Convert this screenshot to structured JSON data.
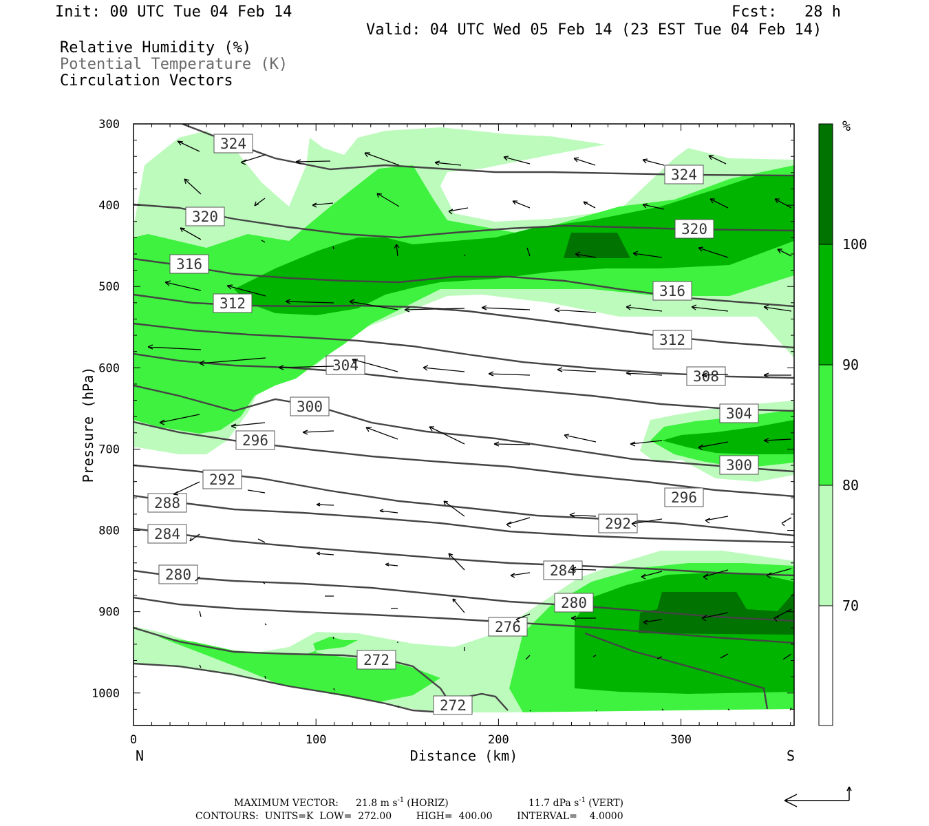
{
  "header": {
    "init": "Init: 00 UTC Tue 04 Feb 14",
    "fcst": "Fcst:   28 h",
    "valid": "Valid: 04 UTC Wed 05 Feb 14 (23 EST Tue 04 Feb 14)",
    "legend_rh": "Relative Humidity (%)",
    "legend_theta": "Potential Temperature (K)",
    "legend_vectors": "Circulation Vectors"
  },
  "colors": {
    "rh70": "#bdfbbd",
    "rh80": "#3ff23f",
    "rh90": "#00b400",
    "rh100": "#007300",
    "contour": "#444444"
  },
  "chart_data": {
    "type": "cross-section",
    "xlabel": "Distance (km)",
    "ylabel": "Pressure (hPa)",
    "x_range": [
      0,
      362
    ],
    "y_range": [
      300,
      1040
    ],
    "x_ticks": [
      0,
      100,
      200,
      300
    ],
    "y_ticks": [
      300,
      400,
      500,
      600,
      700,
      800,
      900,
      1000
    ],
    "x_end_labels": {
      "left": "N",
      "right": "S"
    },
    "colorbar": {
      "unit": "%",
      "levels": [
        70,
        80,
        90,
        100
      ]
    },
    "theta_contour_labels": [
      {
        "value": "324",
        "x": 54,
        "p": 324
      },
      {
        "value": "324",
        "x": 302,
        "p": 363
      },
      {
        "value": "320",
        "x": 39,
        "p": 415
      },
      {
        "value": "320",
        "x": 309,
        "p": 430
      },
      {
        "value": "316",
        "x": 30,
        "p": 474
      },
      {
        "value": "316",
        "x": 297,
        "p": 506
      },
      {
        "value": "312",
        "x": 54,
        "p": 521
      },
      {
        "value": "312",
        "x": 297,
        "p": 566
      },
      {
        "value": "308",
        "x": 314,
        "p": 610
      },
      {
        "value": "304",
        "x": 116,
        "p": 598
      },
      {
        "value": "304",
        "x": 331,
        "p": 658
      },
      {
        "value": "300",
        "x": 96,
        "p": 649
      },
      {
        "value": "300",
        "x": 331,
        "p": 718
      },
      {
        "value": "296",
        "x": 66,
        "p": 691
      },
      {
        "value": "296",
        "x": 302,
        "p": 746
      },
      {
        "value": "292",
        "x": 48,
        "p": 741
      },
      {
        "value": "292",
        "x": 265,
        "p": 779
      },
      {
        "value": "288",
        "x": 18,
        "p": 768
      },
      {
        "value": "284",
        "x": 18,
        "p": 804
      },
      {
        "value": "284",
        "x": 235,
        "p": 849
      },
      {
        "value": "280",
        "x": 24,
        "p": 854
      },
      {
        "value": "280",
        "x": 240,
        "p": 888
      },
      {
        "value": "276",
        "x": 204,
        "p": 918
      },
      {
        "value": "272",
        "x": 132,
        "p": 970
      },
      {
        "value": "272",
        "x": 174,
        "p": 1026
      }
    ],
    "footer": {
      "max_vector_label": "MAXIMUM VECTOR:",
      "horiz_value": "21.8 m s",
      "horiz_exp": "-1",
      "horiz_tag": "(HORIZ)",
      "vert_value": "11.7 dPa s",
      "vert_exp": "-1",
      "vert_tag": "(VERT)",
      "contours": "CONTOURS:  UNITS=K  LOW=  272.00        HIGH=  400.00        INTERVAL=    4.0000"
    }
  }
}
